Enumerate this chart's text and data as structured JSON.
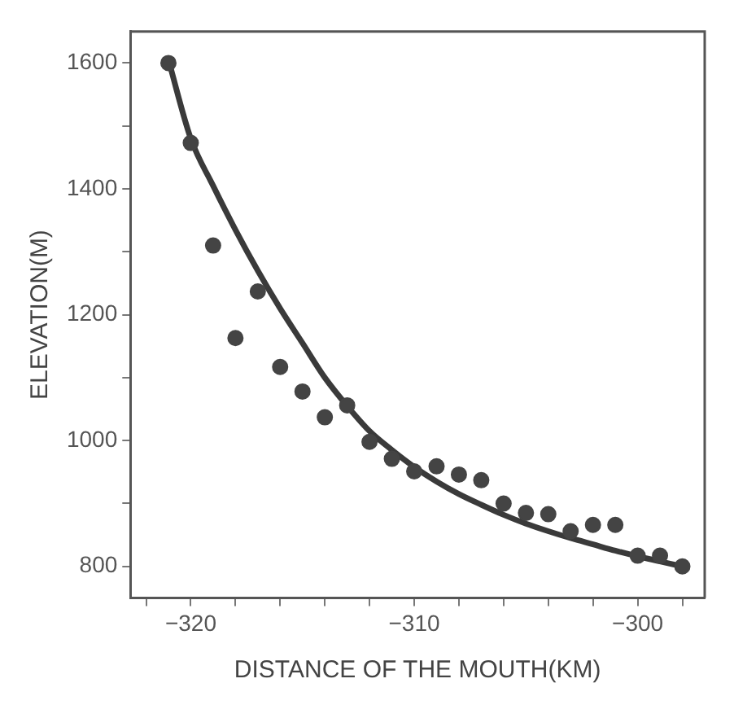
{
  "chart_data": {
    "type": "scatter",
    "xlabel": "DISTANCE OF THE MOUTH(KM)",
    "ylabel": "ELEVATION(M)",
    "xlim": [
      -322.7,
      -297
    ],
    "ylim": [
      750,
      1650
    ],
    "xticks": [
      {
        "value": -322,
        "label": null
      },
      {
        "value": -320,
        "label": "−320"
      },
      {
        "value": -318,
        "label": null
      },
      {
        "value": -316,
        "label": null
      },
      {
        "value": -314,
        "label": null
      },
      {
        "value": -312,
        "label": null
      },
      {
        "value": -310,
        "label": "−310"
      },
      {
        "value": -308,
        "label": null
      },
      {
        "value": -306,
        "label": null
      },
      {
        "value": -304,
        "label": null
      },
      {
        "value": -302,
        "label": null
      },
      {
        "value": -300,
        "label": "−300"
      },
      {
        "value": -298,
        "label": null
      }
    ],
    "yticks": [
      800,
      {
        "value": 900,
        "label": null
      },
      1000,
      {
        "value": 1100,
        "label": null
      },
      1200,
      {
        "value": 1300,
        "label": null
      },
      1400,
      {
        "value": 1500,
        "label": null
      },
      1600
    ],
    "grid": false,
    "legend": false,
    "marker": "circle",
    "series": [
      {
        "color": "#444444",
        "x": [
          -321,
          -320,
          -319,
          -318,
          -317,
          -316,
          -315,
          -314,
          -313,
          -312,
          -311,
          -310,
          -309,
          -308,
          -307,
          -306,
          -305,
          -304,
          -303,
          -302,
          -301,
          -300,
          -299,
          -298
        ],
        "values": [
          1600,
          1473,
          1310,
          1163,
          1237,
          1117,
          1078,
          1037,
          1056,
          998,
          971,
          951,
          959,
          946,
          937,
          900,
          885,
          883,
          856,
          866,
          866,
          817,
          817,
          800
        ]
      },
      {
        "type": "line",
        "color": "#3a3a3a",
        "marker": "none",
        "line_style": "solid",
        "x": [
          -321,
          -320,
          -319,
          -318,
          -317,
          -316,
          -315,
          -314,
          -313,
          -312,
          -311,
          -310,
          -309,
          -308,
          -307,
          -306,
          -305,
          -304,
          -303,
          -302,
          -301,
          -300,
          -299,
          -298
        ],
        "values": [
          1605,
          1480,
          1405,
          1335,
          1270,
          1210,
          1155,
          1100,
          1055,
          1015,
          985,
          958,
          935,
          915,
          898,
          882,
          868,
          856,
          845,
          835,
          825,
          816,
          808,
          800
        ]
      }
    ]
  }
}
